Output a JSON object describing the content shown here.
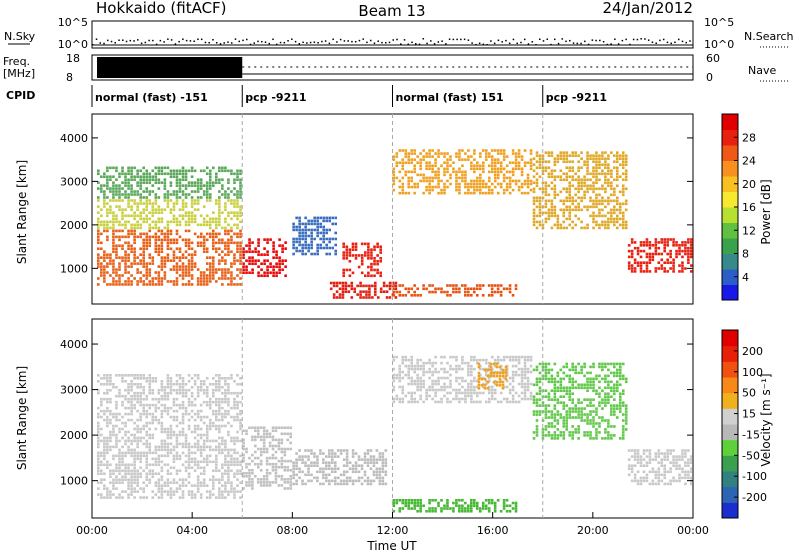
{
  "header": {
    "title": "Hokkaido (fitACF)",
    "beam": "Beam 13",
    "date": "24/Jan/2012"
  },
  "noise_panel": {
    "left_label": "N.Sky",
    "right_label": "N.Search",
    "left_ticks": [
      "10^5",
      "10^0"
    ],
    "right_ticks": [
      "10^5",
      "10^0"
    ]
  },
  "freq_panel": {
    "label_line1": "Freq.",
    "label_line2": "[MHz]",
    "left_ticks": [
      "18",
      "8"
    ],
    "right_ticks": [
      "60",
      "0"
    ],
    "right_label": "Nave"
  },
  "cpid": {
    "label": "CPID",
    "segments": [
      {
        "start_hour": 0,
        "text": "normal (fast) -151"
      },
      {
        "start_hour": 6,
        "text": "pcp -9211"
      },
      {
        "start_hour": 12,
        "text": "normal (fast) 151"
      },
      {
        "start_hour": 18,
        "text": "pcp -9211"
      }
    ]
  },
  "chart_data": [
    {
      "type": "heatmap",
      "name": "power",
      "ylabel": "Slant Range [km]",
      "ylim": [
        180,
        4550
      ],
      "yticks": [
        1000,
        2000,
        3000,
        4000
      ],
      "xlim": [
        0,
        24
      ],
      "colorbar": {
        "label": "Power [dB]",
        "ticks": [
          "28",
          "24",
          "20",
          "16",
          "12",
          "8",
          "4"
        ],
        "colors": [
          "#1818e8",
          "#2c5ec8",
          "#388a8a",
          "#3aa24a",
          "#60c040",
          "#b8e030",
          "#f8e830",
          "#f8c020",
          "#f89020",
          "#f05818",
          "#e82010",
          "#e00000"
        ]
      },
      "regions": [
        {
          "t0": 0.2,
          "t1": 6.0,
          "r0": 600,
          "r1": 1900,
          "color": "#e86018"
        },
        {
          "t0": 0.2,
          "t1": 6.0,
          "r0": 1900,
          "r1": 2600,
          "color": "#c8d040"
        },
        {
          "t0": 0.2,
          "t1": 6.0,
          "r0": 2600,
          "r1": 3350,
          "color": "#58a858"
        },
        {
          "t0": 6.0,
          "t1": 7.8,
          "r0": 800,
          "r1": 1700,
          "color": "#e80808"
        },
        {
          "t0": 8.0,
          "t1": 9.8,
          "r0": 1300,
          "r1": 2200,
          "color": "#3a6cc0"
        },
        {
          "t0": 10.0,
          "t1": 11.6,
          "r0": 800,
          "r1": 1600,
          "color": "#e82010"
        },
        {
          "t0": 9.5,
          "t1": 12.2,
          "r0": 300,
          "r1": 700,
          "color": "#e02010"
        },
        {
          "t0": 12.0,
          "t1": 17.0,
          "r0": 350,
          "r1": 650,
          "color": "#e85010"
        },
        {
          "t0": 12.0,
          "t1": 17.6,
          "r0": 2700,
          "r1": 3750,
          "color": "#f0a020"
        },
        {
          "t0": 17.6,
          "t1": 21.4,
          "r0": 1900,
          "r1": 3700,
          "color": "#e0a828"
        },
        {
          "t0": 21.4,
          "t1": 24.0,
          "r0": 900,
          "r1": 1700,
          "color": "#e82010"
        }
      ]
    },
    {
      "type": "heatmap",
      "name": "velocity",
      "ylabel": "Slant Range [km]",
      "ylim": [
        180,
        4550
      ],
      "yticks": [
        1000,
        2000,
        3000,
        4000
      ],
      "xlim": [
        0,
        24
      ],
      "xticks": [
        "00:00",
        "04:00",
        "08:00",
        "12:00",
        "16:00",
        "20:00",
        "00:00"
      ],
      "xlabel": "Time UT",
      "colorbar": {
        "label": "Velocity [m s⁻¹]",
        "ticks": [
          "200",
          "100",
          "50",
          "15",
          "-15",
          "-50",
          "-100",
          "-200"
        ],
        "colors": [
          "#1a2ed0",
          "#2e64b4",
          "#328080",
          "#3aa050",
          "#5ed03a",
          "#b8b8b8",
          "#d0d0d0",
          "#f0b020",
          "#f88818",
          "#f05010",
          "#e82008",
          "#e00000"
        ]
      },
      "regions": [
        {
          "t0": 0.2,
          "t1": 6.0,
          "r0": 600,
          "r1": 3350,
          "color": "#c8c8c8"
        },
        {
          "t0": 6.0,
          "t1": 8.0,
          "r0": 800,
          "r1": 2200,
          "color": "#c0c0c0"
        },
        {
          "t0": 8.0,
          "t1": 11.8,
          "r0": 900,
          "r1": 1700,
          "color": "#bcbcbc"
        },
        {
          "t0": 12.0,
          "t1": 17.0,
          "r0": 300,
          "r1": 600,
          "color": "#44b830"
        },
        {
          "t0": 12.0,
          "t1": 17.6,
          "r0": 2700,
          "r1": 3750,
          "color": "#c8c8c8"
        },
        {
          "t0": 15.4,
          "t1": 16.6,
          "r0": 3000,
          "r1": 3600,
          "color": "#f0a020"
        },
        {
          "t0": 17.6,
          "t1": 21.4,
          "r0": 1900,
          "r1": 3600,
          "color": "#60c848"
        },
        {
          "t0": 21.4,
          "t1": 24.0,
          "r0": 900,
          "r1": 1700,
          "color": "#c8c8c8"
        }
      ]
    }
  ]
}
